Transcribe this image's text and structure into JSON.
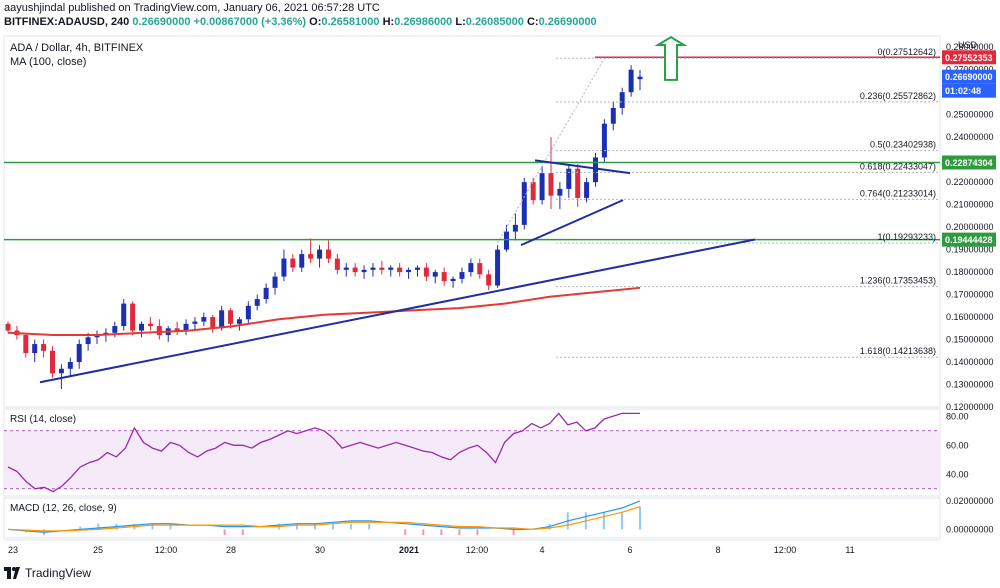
{
  "header": {
    "publisher": "aayushjindal published on TradingView.com, January 06, 2021 06:57:28 UTC",
    "symbol": "BITFINEX:ADAUSD, 240",
    "last": "0.26690000",
    "change": "+0.00867000 (+3.36%)",
    "open_label": "O:",
    "open": "0.26581000",
    "high_label": "H:",
    "high": "0.26986000",
    "low_label": "L:",
    "low": "0.26085000",
    "close_label": "C:",
    "close": "0.26690000"
  },
  "footer": {
    "brand": "TradingView"
  },
  "colors": {
    "up": "#1b2fb3",
    "down": "#e0293b",
    "ma": "#e53935",
    "trend": "#1e2ca6",
    "support": "#2e9b3e",
    "resistance": "#e0293b",
    "rsi": "#9c27b0",
    "macd": "#2196f3",
    "signal": "#ff9800",
    "hist_up": "#90caf9",
    "hist_down": "#ef9a9a"
  },
  "chart_data": [
    {
      "type": "candlestick",
      "title": "ADA / Dollar, 4h, BITFINEX",
      "indicator": "MA (100, close)",
      "ylim": [
        0.12,
        0.285
      ],
      "y_ticks": [
        "0.28000000",
        "0.27000000",
        "0.26000000",
        "0.25000000",
        "0.24000000",
        "0.23000000",
        "0.22000000",
        "0.21000000",
        "0.20000000",
        "0.19000000",
        "0.18000000",
        "0.17000000",
        "0.16000000",
        "0.15000000",
        "0.14000000",
        "0.13000000",
        "0.12000000"
      ],
      "x_ticks": [
        "23",
        "25",
        "12:00",
        "28",
        "30",
        "2021",
        "12:00",
        "4",
        "6",
        "8",
        "12:00",
        "11"
      ],
      "y_unit_label": "USD",
      "price_labels": {
        "resistance": "0.27552353",
        "last": "0.26690000",
        "countdown": "01:02:48",
        "support_upper": "0.22874304",
        "support_lower": "0.19444428"
      },
      "fib_levels": [
        {
          "label": "0(0.27512642)",
          "value": 0.27512642
        },
        {
          "label": "0.236(0.25572862)",
          "value": 0.25572862
        },
        {
          "label": "0.5(0.23402938)",
          "value": 0.23402938
        },
        {
          "label": "0.618(0.22433047)",
          "value": 0.22433047
        },
        {
          "label": "0.764(0.21233014)",
          "value": 0.21233014
        },
        {
          "label": "1(0.19293233)",
          "value": 0.19293233
        },
        {
          "label": "1.236(0.17353453)",
          "value": 0.17353453
        },
        {
          "label": "1.618(0.14213638)",
          "value": 0.14213638
        }
      ],
      "horizontal_lines": [
        0.27552353,
        0.22874304,
        0.19444428
      ],
      "candles": [
        [
          0.157,
          0.158,
          0.153,
          0.154
        ],
        [
          0.154,
          0.156,
          0.15,
          0.152
        ],
        [
          0.152,
          0.153,
          0.142,
          0.144
        ],
        [
          0.144,
          0.15,
          0.14,
          0.148
        ],
        [
          0.148,
          0.15,
          0.142,
          0.145
        ],
        [
          0.145,
          0.147,
          0.133,
          0.135
        ],
        [
          0.135,
          0.139,
          0.128,
          0.137
        ],
        [
          0.137,
          0.142,
          0.134,
          0.14
        ],
        [
          0.14,
          0.15,
          0.137,
          0.148
        ],
        [
          0.148,
          0.153,
          0.145,
          0.151
        ],
        [
          0.151,
          0.154,
          0.148,
          0.152
        ],
        [
          0.152,
          0.155,
          0.149,
          0.153
        ],
        [
          0.153,
          0.158,
          0.151,
          0.156
        ],
        [
          0.156,
          0.168,
          0.154,
          0.166
        ],
        [
          0.166,
          0.167,
          0.152,
          0.154
        ],
        [
          0.154,
          0.158,
          0.151,
          0.157
        ],
        [
          0.157,
          0.16,
          0.154,
          0.156
        ],
        [
          0.156,
          0.159,
          0.15,
          0.152
        ],
        [
          0.152,
          0.156,
          0.149,
          0.155
        ],
        [
          0.155,
          0.158,
          0.152,
          0.154
        ],
        [
          0.154,
          0.159,
          0.152,
          0.157
        ],
        [
          0.157,
          0.16,
          0.154,
          0.158
        ],
        [
          0.158,
          0.162,
          0.156,
          0.16
        ],
        [
          0.16,
          0.161,
          0.153,
          0.155
        ],
        [
          0.155,
          0.165,
          0.154,
          0.163
        ],
        [
          0.163,
          0.164,
          0.155,
          0.157
        ],
        [
          0.157,
          0.16,
          0.154,
          0.159
        ],
        [
          0.159,
          0.167,
          0.157,
          0.165
        ],
        [
          0.165,
          0.17,
          0.163,
          0.168
        ],
        [
          0.168,
          0.175,
          0.166,
          0.173
        ],
        [
          0.173,
          0.18,
          0.17,
          0.178
        ],
        [
          0.178,
          0.19,
          0.176,
          0.186
        ],
        [
          0.186,
          0.188,
          0.18,
          0.182
        ],
        [
          0.182,
          0.19,
          0.18,
          0.188
        ],
        [
          0.188,
          0.195,
          0.184,
          0.186
        ],
        [
          0.186,
          0.192,
          0.182,
          0.19
        ],
        [
          0.19,
          0.194,
          0.184,
          0.186
        ],
        [
          0.186,
          0.188,
          0.179,
          0.181
        ],
        [
          0.181,
          0.184,
          0.178,
          0.182
        ],
        [
          0.182,
          0.184,
          0.178,
          0.18
        ],
        [
          0.18,
          0.183,
          0.177,
          0.181
        ],
        [
          0.181,
          0.184,
          0.178,
          0.182
        ],
        [
          0.182,
          0.185,
          0.179,
          0.181
        ],
        [
          0.181,
          0.183,
          0.178,
          0.182
        ],
        [
          0.182,
          0.184,
          0.178,
          0.18
        ],
        [
          0.18,
          0.182,
          0.177,
          0.181
        ],
        [
          0.181,
          0.183,
          0.178,
          0.182
        ],
        [
          0.182,
          0.184,
          0.176,
          0.178
        ],
        [
          0.178,
          0.181,
          0.175,
          0.18
        ],
        [
          0.18,
          0.182,
          0.174,
          0.176
        ],
        [
          0.176,
          0.178,
          0.173,
          0.177
        ],
        [
          0.177,
          0.182,
          0.175,
          0.18
        ],
        [
          0.18,
          0.186,
          0.178,
          0.184
        ],
        [
          0.184,
          0.186,
          0.177,
          0.179
        ],
        [
          0.179,
          0.181,
          0.172,
          0.174
        ],
        [
          0.174,
          0.192,
          0.173,
          0.19
        ],
        [
          0.19,
          0.201,
          0.189,
          0.198
        ],
        [
          0.198,
          0.206,
          0.194,
          0.201
        ],
        [
          0.201,
          0.222,
          0.199,
          0.22
        ],
        [
          0.22,
          0.222,
          0.21,
          0.212
        ],
        [
          0.212,
          0.227,
          0.21,
          0.224
        ],
        [
          0.224,
          0.24,
          0.208,
          0.214
        ],
        [
          0.214,
          0.22,
          0.208,
          0.217
        ],
        [
          0.217,
          0.228,
          0.213,
          0.226
        ],
        [
          0.226,
          0.228,
          0.209,
          0.213
        ],
        [
          0.213,
          0.222,
          0.211,
          0.22
        ],
        [
          0.22,
          0.233,
          0.218,
          0.231
        ],
        [
          0.231,
          0.248,
          0.229,
          0.246
        ],
        [
          0.246,
          0.256,
          0.243,
          0.253
        ],
        [
          0.253,
          0.262,
          0.25,
          0.26
        ],
        [
          0.26,
          0.272,
          0.258,
          0.27
        ],
        [
          0.2658,
          0.2699,
          0.2609,
          0.2669
        ]
      ],
      "ma100": [
        0.153,
        0.152,
        0.152,
        0.153,
        0.154,
        0.156,
        0.159,
        0.161,
        0.162,
        0.163,
        0.164,
        0.166,
        0.169,
        0.171,
        0.173
      ],
      "trendlines": [
        "rising support",
        "pennant upper",
        "pennant lower"
      ]
    },
    {
      "type": "line",
      "title": "RSI (14, close)",
      "ylim": [
        25,
        85
      ],
      "y_ticks": [
        "80.00",
        "60.00",
        "40.00"
      ],
      "band": [
        30,
        70
      ],
      "values": [
        45,
        42,
        35,
        30,
        31,
        28,
        32,
        38,
        45,
        48,
        50,
        55,
        52,
        58,
        72,
        62,
        58,
        56,
        62,
        60,
        55,
        52,
        56,
        58,
        62,
        60,
        60,
        58,
        62,
        64,
        67,
        70,
        68,
        70,
        72,
        70,
        65,
        58,
        60,
        62,
        60,
        58,
        60,
        62,
        60,
        58,
        56,
        55,
        52,
        50,
        55,
        58,
        60,
        55,
        48,
        62,
        68,
        70,
        75,
        72,
        75,
        82,
        74,
        76,
        70,
        72,
        78,
        80,
        82,
        82,
        82
      ]
    },
    {
      "type": "line",
      "title": "MACD (12, 26, close, 9)",
      "ylim": [
        -0.006,
        0.022
      ],
      "y_ticks": [
        "0.02000000",
        "0.00000000"
      ],
      "macd": [
        0,
        -0.001,
        -0.002,
        -0.001,
        0,
        0.001,
        0.002,
        0.003,
        0.004,
        0.004,
        0.003,
        0.003,
        0.002,
        0.002,
        0.002,
        0.003,
        0.004,
        0.004,
        0.005,
        0.006,
        0.006,
        0.005,
        0.004,
        0.003,
        0.002,
        0.001,
        0.001,
        0.001,
        0,
        0,
        0.002,
        0.006,
        0.009,
        0.012,
        0.015,
        0.02
      ],
      "signal": [
        0,
        -0.0005,
        -0.001,
        -0.001,
        -0.0005,
        0,
        0.001,
        0.002,
        0.003,
        0.003,
        0.003,
        0.003,
        0.003,
        0.003,
        0.002,
        0.002,
        0.003,
        0.003,
        0.004,
        0.005,
        0.005,
        0.005,
        0.005,
        0.004,
        0.003,
        0.002,
        0.002,
        0.001,
        0.001,
        0,
        0.001,
        0.003,
        0.006,
        0.009,
        0.012,
        0.016
      ]
    }
  ]
}
